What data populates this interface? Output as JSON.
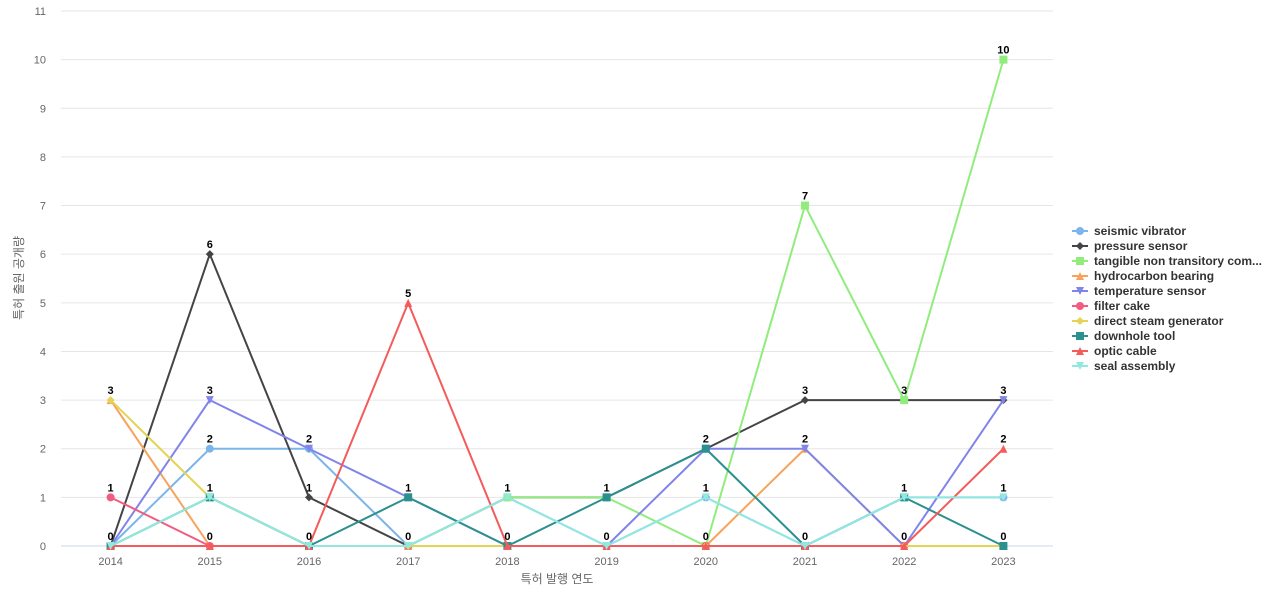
{
  "chart_data": {
    "type": "line",
    "title": "",
    "xlabel": "특허 발행 연도",
    "ylabel": "특허 출원 공개량",
    "ylim": [
      0,
      11
    ],
    "yticks": [
      0,
      1,
      2,
      3,
      4,
      5,
      6,
      7,
      8,
      9,
      10,
      11
    ],
    "grid": true,
    "legend_position": "right",
    "categories": [
      "2014",
      "2015",
      "2016",
      "2017",
      "2018",
      "2019",
      "2020",
      "2021",
      "2022",
      "2023"
    ],
    "series": [
      {
        "name": "seismic vibrator",
        "color": "#7cb5ec",
        "marker": "circle",
        "values": [
          0,
          2,
          2,
          0,
          1,
          0,
          1,
          0,
          1,
          1
        ]
      },
      {
        "name": "pressure sensor",
        "color": "#434348",
        "marker": "diamond",
        "values": [
          0,
          6,
          1,
          0,
          1,
          1,
          2,
          3,
          3,
          3
        ]
      },
      {
        "name": "tangible non transitory com...",
        "color": "#90ed7d",
        "marker": "square",
        "values": [
          0,
          1,
          0,
          0,
          1,
          1,
          0,
          7,
          3,
          10
        ]
      },
      {
        "name": "hydrocarbon bearing",
        "color": "#f7a35c",
        "marker": "triangle",
        "values": [
          3,
          0,
          0,
          0,
          0,
          0,
          0,
          2,
          0,
          0
        ]
      },
      {
        "name": "temperature sensor",
        "color": "#8085e9",
        "marker": "triangle-down",
        "values": [
          0,
          3,
          2,
          1,
          0,
          0,
          2,
          2,
          0,
          3
        ]
      },
      {
        "name": "filter cake",
        "color": "#f15c80",
        "marker": "circle",
        "values": [
          1,
          0,
          0,
          0,
          0,
          0,
          0,
          0,
          0,
          0
        ]
      },
      {
        "name": "direct steam generator",
        "color": "#e4d354",
        "marker": "diamond",
        "values": [
          3,
          1,
          0,
          0,
          0,
          0,
          0,
          0,
          0,
          0
        ]
      },
      {
        "name": "downhole tool",
        "color": "#2b908f",
        "marker": "square",
        "values": [
          0,
          1,
          0,
          1,
          0,
          1,
          2,
          0,
          1,
          0
        ]
      },
      {
        "name": "optic cable",
        "color": "#f45b5b",
        "marker": "triangle",
        "values": [
          0,
          0,
          0,
          5,
          0,
          0,
          0,
          0,
          0,
          2
        ]
      },
      {
        "name": "seal assembly",
        "color": "#91e8e1",
        "marker": "triangle-down",
        "values": [
          0,
          1,
          0,
          0,
          1,
          0,
          1,
          0,
          1,
          1
        ]
      }
    ],
    "data_labels": [
      [
        3,
        6,
        2,
        5,
        1,
        1,
        2,
        7,
        3,
        10
      ],
      [
        1,
        3,
        1,
        1,
        0,
        0,
        1,
        3,
        1,
        3
      ],
      [
        0,
        2,
        0,
        0,
        null,
        null,
        0,
        2,
        0,
        2
      ],
      [
        null,
        1,
        null,
        null,
        null,
        null,
        null,
        0,
        null,
        1
      ],
      [
        null,
        0,
        null,
        null,
        null,
        null,
        null,
        null,
        null,
        0
      ]
    ]
  }
}
